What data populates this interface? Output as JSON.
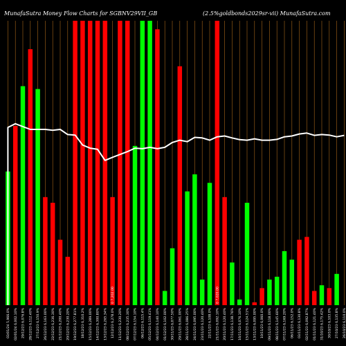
{
  "chart_data": {
    "type": "bar",
    "title_left": "MunafaSutra  Money Flow  Charts for SGBNV29VII_GB",
    "title_right": "(2.5%goldbonds2029sr-vii) MunafaSutra.com",
    "colors": {
      "up": "#00ff00",
      "down": "#ff0000",
      "line": "#ffffff",
      "grid": "#c87a1e",
      "background": "#000000"
    },
    "ylim": [
      0,
      100
    ],
    "categories": [
      "03/01/24 5,966.0%",
      "02/01/24 6,002.10%",
      "29/12/23 6,076.8%",
      "28/12/23 6,112.40%",
      "27/12/23 6,150.9%",
      "26/12/23 6,163.00%",
      "22/12/23 6,236.30%",
      "21/12/23 6,200.40%",
      "20/12/23 6,230.20%",
      "19/12/23 6,277.81%",
      "18/12/23 6,310.2%",
      "15/12/23 6,289.00%",
      "14/12/23 6,300.80%",
      "13/12/23 6,265.34%",
      "12/12/23 6,278.0%",
      "11/12/23 6,230.20%",
      "08/12/23 6,235.30%",
      "07/12/23 6,154.10%",
      "06/12/23 6,115.4%",
      "05/12/23 6,119.41%",
      "04/12/23 6,140.10%",
      "01/12/23 6,102.00%",
      "30/11/23 6,077.50%",
      "29/11/23 6,061.00%",
      "28/11/23 6,086.25%",
      "24/11/23 6,095.00%",
      "23/11/23 6,120.40%",
      "22/11/23 6,108.0%",
      "21/11/23 6,092.10%",
      "20/11/23 6,120.40%",
      "17/11/23 6,138.76%",
      "16/11/23 6,076.10%",
      "15/11/23 6,124.51%",
      "13/11/23 6,095.00%",
      "10/11/23 6,060.0%",
      "09/11/23 6,118.00%",
      "08/11/23 6,145.60%",
      "07/11/23 6,169.20%",
      "06/11/23 6,152.0%",
      "03/11/23 6,130.8%",
      "02/11/23 6,092.87%",
      "01/11/23 6,121.40%",
      "31/10/23 6,175.42%",
      "30/10/23 6,103.0%",
      "27/10/23 6,135.8%",
      "26/10/23 6,110.0%"
    ],
    "values": [
      47,
      63,
      77,
      90,
      76,
      38,
      36,
      23,
      17,
      100,
      100,
      100,
      100,
      100,
      38,
      100,
      100,
      56,
      100,
      100,
      97,
      5,
      20,
      84,
      40,
      46,
      9,
      43,
      100,
      38,
      15,
      2,
      36,
      1,
      6,
      9,
      10,
      19,
      16,
      23,
      24,
      5,
      7,
      6,
      11,
      0
    ],
    "directions": [
      "up",
      "down",
      "up",
      "down",
      "up",
      "down",
      "down",
      "down",
      "down",
      "down",
      "down",
      "down",
      "down",
      "down",
      "down",
      "down",
      "down",
      "up",
      "up",
      "up",
      "down",
      "up",
      "up",
      "down",
      "up",
      "up",
      "up",
      "up",
      "down",
      "down",
      "up",
      "up",
      "up",
      "down",
      "down",
      "up",
      "up",
      "up",
      "up",
      "down",
      "down",
      "down",
      "up",
      "down",
      "up",
      "up"
    ],
    "line_values": [
      62.5,
      63.8,
      62.8,
      61.8,
      61.8,
      61.8,
      61.5,
      61.8,
      60.0,
      59.8,
      56.3,
      55.2,
      54.8,
      50.9,
      52.0,
      53.0,
      54.0,
      55.2,
      55.0,
      55.5,
      55.0,
      55.5,
      57.2,
      58.0,
      57.5,
      59.0,
      58.8,
      58.0,
      59.2,
      59.5,
      58.8,
      58.2,
      58.0,
      58.5,
      58.0,
      58.0,
      58.3,
      59.2,
      59.5,
      60.2,
      60.5,
      59.7,
      60.0,
      59.8,
      59.2,
      59.7
    ],
    "mid_labels": [
      {
        "index": 14,
        "text": "0 7,202.00"
      },
      {
        "index": 28,
        "text": "0 7,020.00"
      }
    ]
  }
}
